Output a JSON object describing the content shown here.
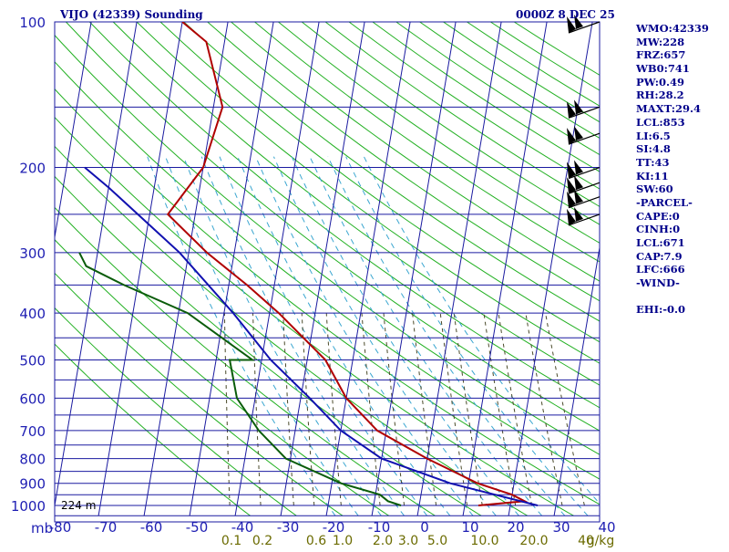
{
  "header": {
    "title": "VIJO (42339) Sounding",
    "time": "0000Z  8 DEC 25"
  },
  "indices": [
    "WMO:42339",
    "MW:228",
    "FRZ:657",
    "WB0:741",
    "PW:0.49",
    "RH:28.2",
    "MAXT:29.4",
    "LCL:853",
    "LI:6.5",
    "SI:4.8",
    "TT:43",
    "KI:11",
    "SW:60",
    "-PARCEL-",
    "CAPE:0",
    "CINH:0",
    "LCL:671",
    "CAP:7.9",
    "LFC:666",
    "-WIND-",
    "",
    "EHI:-0.0"
  ],
  "chart_data": {
    "type": "line",
    "pressure_axis_label": "mb",
    "pressure_ticks": [
      "100",
      "200",
      "300",
      "400",
      "500",
      "600",
      "700",
      "800",
      "900",
      "1000"
    ],
    "temperature_ticks": [
      "-80",
      "-70",
      "-60",
      "-50",
      "-40",
      "-30",
      "-20",
      "-10",
      "0",
      "10",
      "20",
      "30",
      "40"
    ],
    "mixing_ratio_ticks": [
      "0.1",
      "0.2",
      "0.6",
      "1.0",
      "2.0",
      "3.0",
      "5.0",
      "10.0",
      "20.0",
      "40",
      "g/kg"
    ],
    "surface_height_label": "224 m",
    "temperature_range": [
      -80,
      40
    ],
    "pressure_range": [
      1000,
      100
    ],
    "series": [
      {
        "name": "",
        "color": "#b00000",
        "points": [
          [
            13,
            1000
          ],
          [
            23,
            980
          ],
          [
            20,
            950
          ],
          [
            12,
            900
          ],
          [
            0,
            800
          ],
          [
            -12,
            700
          ],
          [
            -20,
            600
          ],
          [
            -26,
            500
          ],
          [
            -38,
            400
          ],
          [
            -46,
            350
          ],
          [
            -56,
            300
          ],
          [
            -66,
            250
          ],
          [
            -60,
            200
          ],
          [
            -58,
            150
          ],
          [
            -64,
            110
          ],
          [
            -70,
            100
          ]
        ]
      },
      {
        "name": "",
        "color": "#0a5c0a",
        "points": [
          [
            -4,
            1000
          ],
          [
            -7,
            980
          ],
          [
            -9,
            950
          ],
          [
            -18,
            900
          ],
          [
            -31,
            800
          ],
          [
            -38,
            700
          ],
          [
            -44,
            600
          ],
          [
            -47,
            500
          ],
          [
            -42,
            500
          ],
          [
            -58,
            400
          ],
          [
            -73,
            350
          ],
          [
            -82,
            320
          ],
          [
            -84,
            300
          ]
        ]
      },
      {
        "name": "",
        "color": "#1010b0",
        "points": [
          [
            26,
            1000
          ],
          [
            6,
            900
          ],
          [
            -10,
            800
          ],
          [
            -20,
            700
          ],
          [
            -28,
            600
          ],
          [
            -38,
            500
          ],
          [
            -48,
            400
          ],
          [
            -62,
            300
          ],
          [
            -80,
            220
          ],
          [
            -86,
            200
          ]
        ]
      }
    ],
    "wind_barbs": [
      {
        "pressure": 100
      },
      {
        "pressure": 150
      },
      {
        "pressure": 170
      },
      {
        "pressure": 200
      },
      {
        "pressure": 215
      },
      {
        "pressure": 230
      },
      {
        "pressure": 250
      }
    ]
  }
}
